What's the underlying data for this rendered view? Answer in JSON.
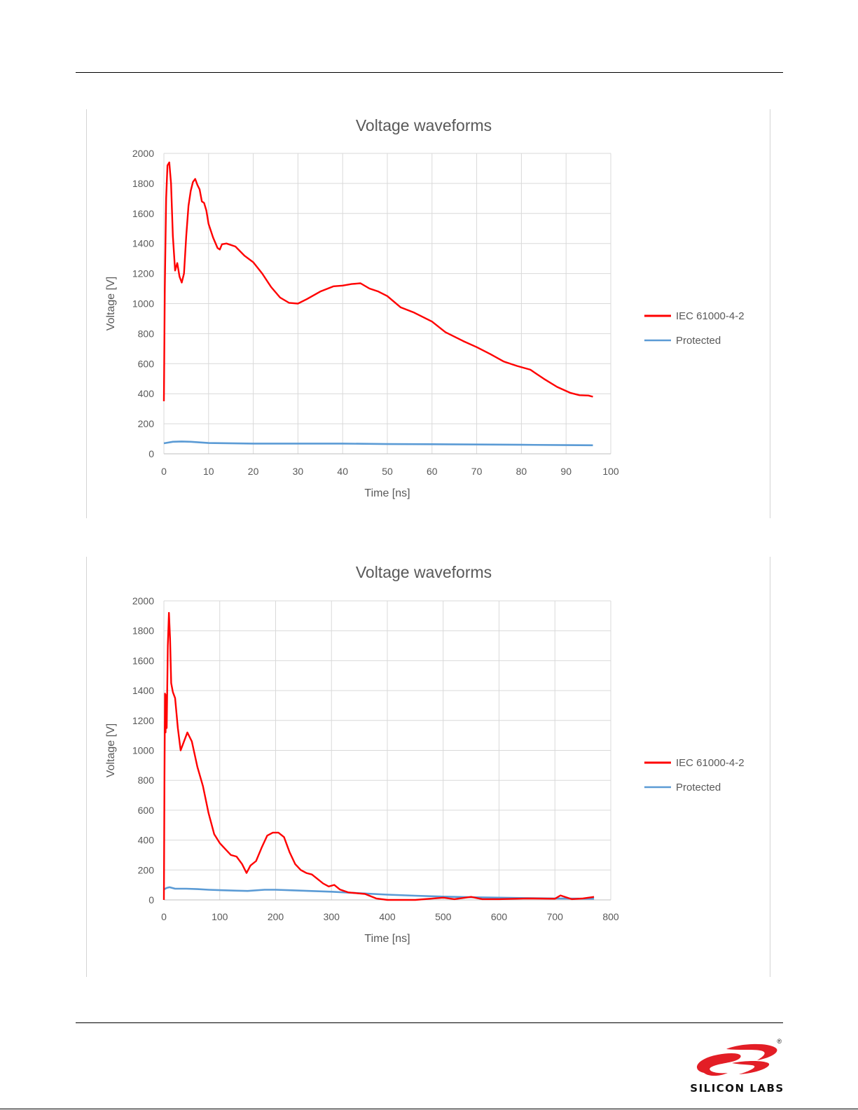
{
  "charts_meta": {
    "series_colors": {
      "iec": "#ff0000",
      "protected": "#5b9bd5"
    }
  },
  "brand": {
    "name": "SILICON LABS",
    "logo_color": "#e31e26"
  },
  "chart_data": [
    {
      "type": "line",
      "title": "Voltage waveforms",
      "xlabel": "Time [ns]",
      "ylabel": "Voltage [V]",
      "xlim": [
        0,
        100
      ],
      "ylim": [
        0,
        2000
      ],
      "x_ticks": [
        0,
        10,
        20,
        30,
        40,
        50,
        60,
        70,
        80,
        90,
        100
      ],
      "y_ticks": [
        0,
        200,
        400,
        600,
        800,
        1000,
        1200,
        1400,
        1600,
        1800,
        2000
      ],
      "grid": true,
      "legend_position": "right",
      "series": [
        {
          "name": "IEC 61000-4-2",
          "color": "#ff0000",
          "points": [
            [
              0,
              350
            ],
            [
              0.2,
              1100
            ],
            [
              0.5,
              1700
            ],
            [
              0.8,
              1920
            ],
            [
              1.2,
              1940
            ],
            [
              1.6,
              1800
            ],
            [
              2.0,
              1450
            ],
            [
              2.5,
              1220
            ],
            [
              3.0,
              1270
            ],
            [
              3.5,
              1180
            ],
            [
              4.0,
              1140
            ],
            [
              4.5,
              1200
            ],
            [
              5.0,
              1450
            ],
            [
              5.5,
              1650
            ],
            [
              6.0,
              1750
            ],
            [
              6.5,
              1810
            ],
            [
              7.0,
              1830
            ],
            [
              7.5,
              1790
            ],
            [
              8.0,
              1760
            ],
            [
              8.5,
              1680
            ],
            [
              9.0,
              1670
            ],
            [
              9.5,
              1620
            ],
            [
              10,
              1530
            ],
            [
              11,
              1440
            ],
            [
              12,
              1370
            ],
            [
              12.5,
              1360
            ],
            [
              13,
              1395
            ],
            [
              14,
              1400
            ],
            [
              16,
              1380
            ],
            [
              18,
              1320
            ],
            [
              20,
              1275
            ],
            [
              22,
              1200
            ],
            [
              24,
              1110
            ],
            [
              26,
              1040
            ],
            [
              28,
              1005
            ],
            [
              30,
              1000
            ],
            [
              32,
              1030
            ],
            [
              35,
              1080
            ],
            [
              38,
              1115
            ],
            [
              40,
              1120
            ],
            [
              42,
              1130
            ],
            [
              44,
              1135
            ],
            [
              46,
              1100
            ],
            [
              48,
              1080
            ],
            [
              50,
              1050
            ],
            [
              53,
              975
            ],
            [
              56,
              940
            ],
            [
              60,
              880
            ],
            [
              63,
              810
            ],
            [
              67,
              750
            ],
            [
              70,
              710
            ],
            [
              73,
              665
            ],
            [
              76,
              615
            ],
            [
              79,
              585
            ],
            [
              82,
              560
            ],
            [
              85,
              500
            ],
            [
              88,
              445
            ],
            [
              91,
              405
            ],
            [
              93,
              390
            ],
            [
              95,
              388
            ],
            [
              96,
              380
            ]
          ]
        },
        {
          "name": "Protected",
          "color": "#5b9bd5",
          "points": [
            [
              0,
              70
            ],
            [
              2,
              80
            ],
            [
              4,
              82
            ],
            [
              6,
              80
            ],
            [
              10,
              72
            ],
            [
              20,
              68
            ],
            [
              30,
              68
            ],
            [
              40,
              68
            ],
            [
              50,
              65
            ],
            [
              60,
              64
            ],
            [
              70,
              62
            ],
            [
              80,
              60
            ],
            [
              90,
              58
            ],
            [
              96,
              57
            ]
          ]
        }
      ]
    },
    {
      "type": "line",
      "title": "Voltage waveforms",
      "xlabel": "Time [ns]",
      "ylabel": "Voltage [V]",
      "xlim": [
        0,
        800
      ],
      "ylim": [
        0,
        2000
      ],
      "x_ticks": [
        0,
        100,
        200,
        300,
        400,
        500,
        600,
        700,
        800
      ],
      "y_ticks": [
        0,
        200,
        400,
        600,
        800,
        1000,
        1200,
        1400,
        1600,
        1800,
        2000
      ],
      "grid": true,
      "legend_position": "right",
      "series": [
        {
          "name": "IEC 61000-4-2",
          "color": "#ff0000",
          "points": [
            [
              0,
              0
            ],
            [
              1,
              800
            ],
            [
              2,
              1380
            ],
            [
              3,
              1120
            ],
            [
              4,
              1370
            ],
            [
              5,
              1150
            ],
            [
              7,
              1700
            ],
            [
              9,
              1920
            ],
            [
              11,
              1750
            ],
            [
              13,
              1450
            ],
            [
              16,
              1390
            ],
            [
              20,
              1350
            ],
            [
              25,
              1150
            ],
            [
              30,
              1000
            ],
            [
              35,
              1050
            ],
            [
              42,
              1120
            ],
            [
              50,
              1060
            ],
            [
              60,
              890
            ],
            [
              70,
              760
            ],
            [
              80,
              580
            ],
            [
              90,
              440
            ],
            [
              100,
              380
            ],
            [
              110,
              340
            ],
            [
              120,
              300
            ],
            [
              130,
              290
            ],
            [
              140,
              240
            ],
            [
              148,
              180
            ],
            [
              155,
              230
            ],
            [
              165,
              260
            ],
            [
              175,
              350
            ],
            [
              185,
              430
            ],
            [
              195,
              450
            ],
            [
              205,
              450
            ],
            [
              215,
              420
            ],
            [
              225,
              320
            ],
            [
              235,
              240
            ],
            [
              245,
              200
            ],
            [
              255,
              180
            ],
            [
              265,
              170
            ],
            [
              275,
              140
            ],
            [
              285,
              110
            ],
            [
              295,
              90
            ],
            [
              305,
              100
            ],
            [
              315,
              70
            ],
            [
              330,
              50
            ],
            [
              345,
              45
            ],
            [
              360,
              40
            ],
            [
              380,
              10
            ],
            [
              400,
              0
            ],
            [
              450,
              0
            ],
            [
              500,
              15
            ],
            [
              520,
              5
            ],
            [
              550,
              20
            ],
            [
              570,
              5
            ],
            [
              600,
              5
            ],
            [
              650,
              10
            ],
            [
              700,
              8
            ],
            [
              710,
              30
            ],
            [
              730,
              5
            ],
            [
              750,
              10
            ],
            [
              770,
              20
            ]
          ]
        },
        {
          "name": "Protected",
          "color": "#5b9bd5",
          "points": [
            [
              0,
              70
            ],
            [
              5,
              80
            ],
            [
              10,
              85
            ],
            [
              20,
              75
            ],
            [
              40,
              75
            ],
            [
              60,
              72
            ],
            [
              80,
              68
            ],
            [
              100,
              65
            ],
            [
              130,
              62
            ],
            [
              150,
              60
            ],
            [
              180,
              68
            ],
            [
              200,
              68
            ],
            [
              230,
              64
            ],
            [
              260,
              60
            ],
            [
              300,
              55
            ],
            [
              350,
              45
            ],
            [
              400,
              35
            ],
            [
              450,
              28
            ],
            [
              500,
              22
            ],
            [
              550,
              18
            ],
            [
              600,
              15
            ],
            [
              650,
              12
            ],
            [
              700,
              10
            ],
            [
              770,
              8
            ]
          ]
        }
      ]
    }
  ]
}
